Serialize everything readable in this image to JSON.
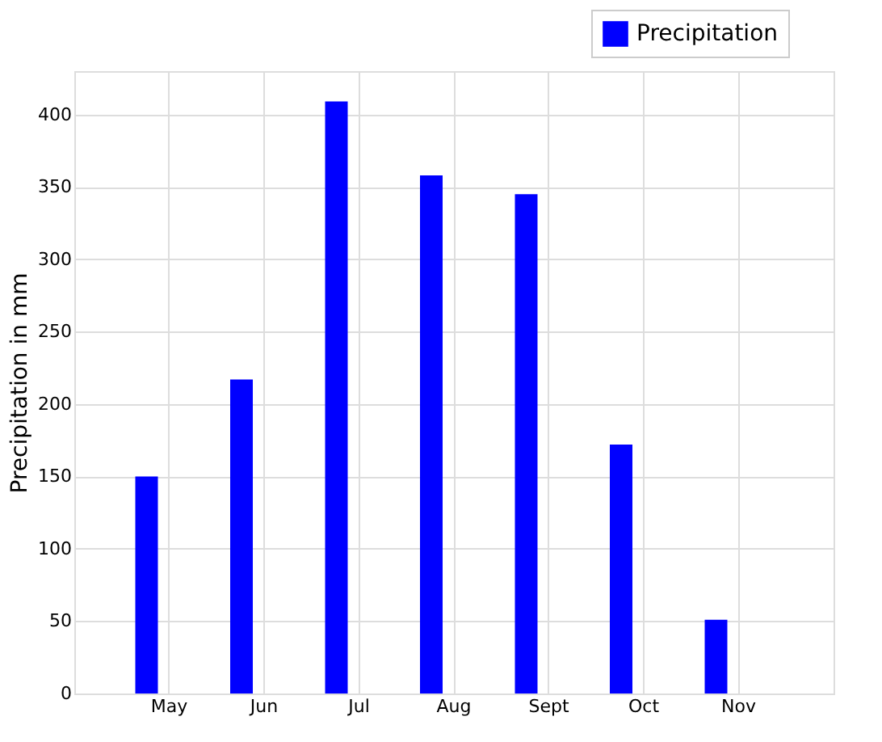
{
  "chart_data": {
    "type": "bar",
    "ylabel": "Precipitation in mm",
    "categories": [
      "May",
      "Jun",
      "Jul",
      "Aug",
      "Sept",
      "Oct",
      "Nov"
    ],
    "series": [
      {
        "name": "Precipitation",
        "color": "#0000ff",
        "values": [
          150,
          217,
          409,
          358,
          345,
          172,
          51
        ]
      }
    ],
    "ylim": [
      0,
      430
    ],
    "yticks": [
      0,
      50,
      100,
      150,
      200,
      250,
      300,
      350,
      400
    ],
    "grid": true,
    "legend": "top right"
  }
}
